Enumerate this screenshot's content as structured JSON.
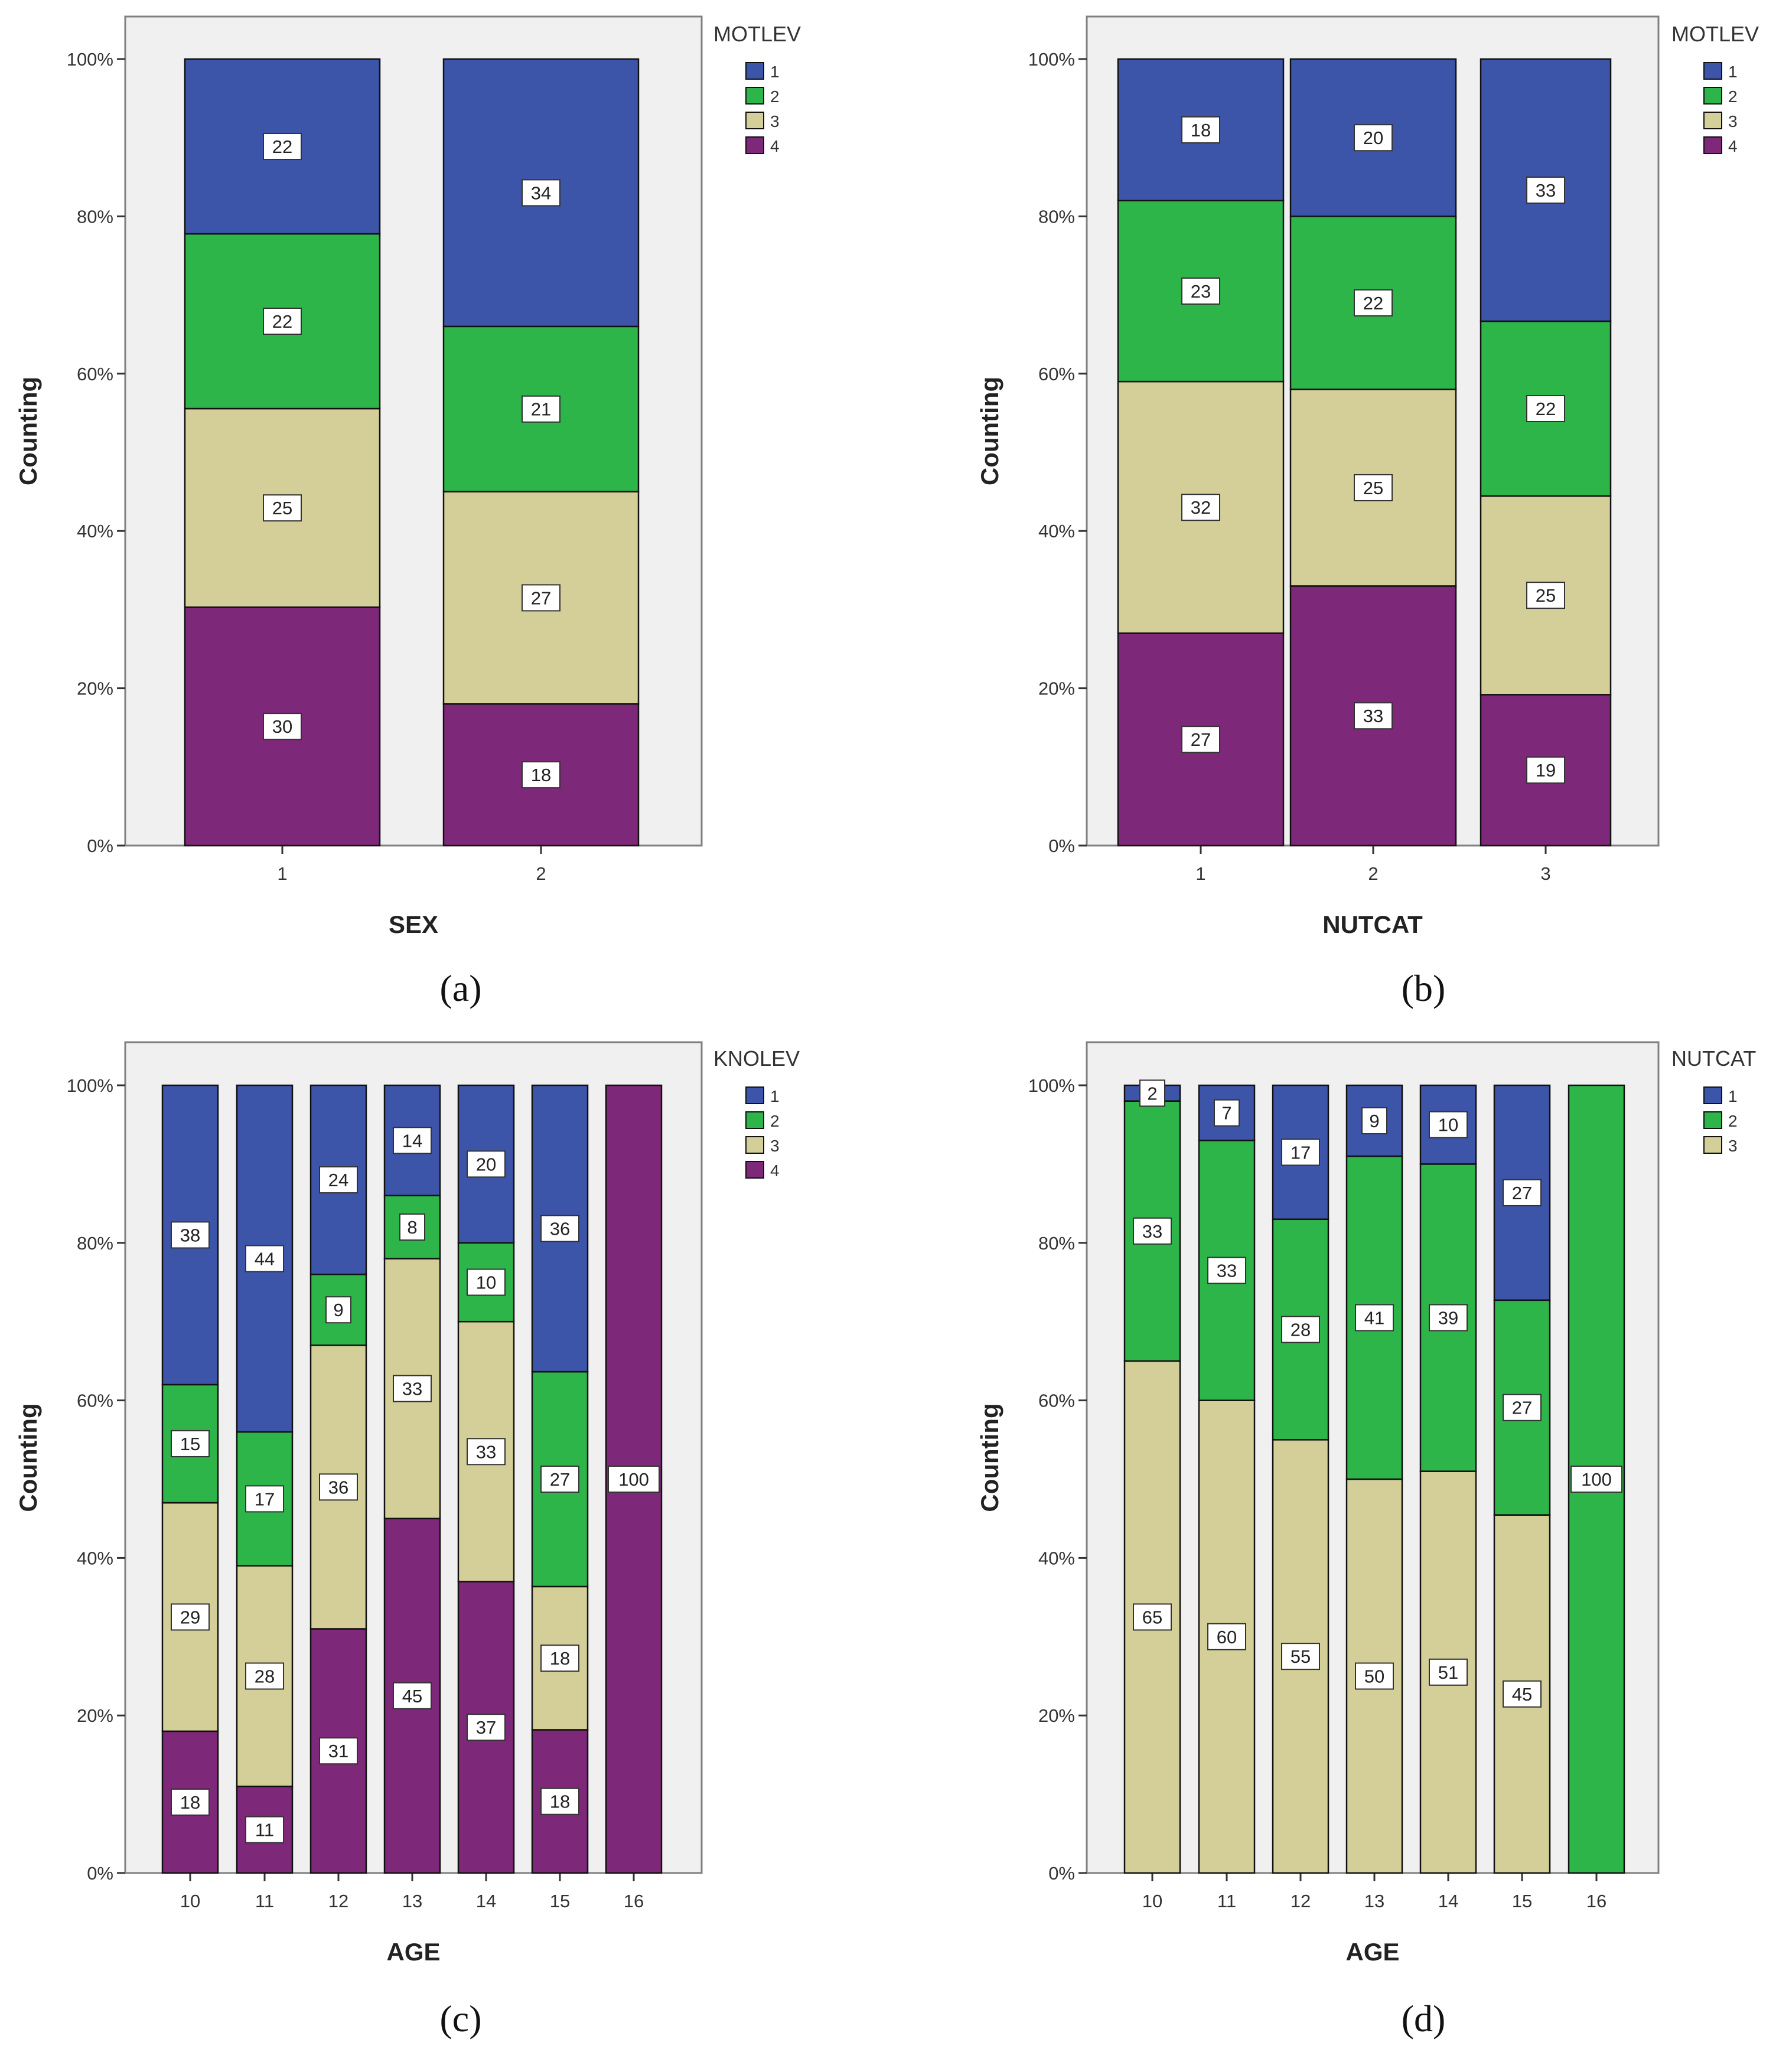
{
  "figure": {
    "colors": {
      "1": "#3d55a8",
      "2": "#2db54a",
      "3": "#d4cf98",
      "4": "#7d2878",
      "plot_bg": "#f0f0f0",
      "frame": "#808080"
    }
  },
  "chart_data": [
    {
      "id": "a",
      "panel_label": "(a)",
      "type": "bar",
      "stacked": true,
      "percent": true,
      "title": "",
      "xlabel": "SEX",
      "ylabel": "Counting",
      "ylim": [
        0,
        100
      ],
      "yticks": [
        "0%",
        "20%",
        "40%",
        "60%",
        "80%",
        "100%"
      ],
      "categories": [
        "1",
        "2"
      ],
      "legend_title": "MOTLEV",
      "series": [
        {
          "name": "4",
          "color_key": "4",
          "values": [
            30,
            18
          ]
        },
        {
          "name": "3",
          "color_key": "3",
          "values": [
            25,
            27
          ]
        },
        {
          "name": "2",
          "color_key": "2",
          "values": [
            22,
            21
          ]
        },
        {
          "name": "1",
          "color_key": "1",
          "values": [
            22,
            34
          ]
        }
      ],
      "legend_order": [
        "1",
        "2",
        "3",
        "4"
      ]
    },
    {
      "id": "b",
      "panel_label": "(b)",
      "type": "bar",
      "stacked": true,
      "percent": true,
      "title": "",
      "xlabel": "NUTCAT",
      "ylabel": "Counting",
      "ylim": [
        0,
        100
      ],
      "yticks": [
        "0%",
        "20%",
        "40%",
        "60%",
        "80%",
        "100%"
      ],
      "categories": [
        "1",
        "2",
        "3"
      ],
      "legend_title": "MOTLEV",
      "series": [
        {
          "name": "4",
          "color_key": "4",
          "values": [
            27,
            33,
            19
          ]
        },
        {
          "name": "3",
          "color_key": "3",
          "values": [
            32,
            25,
            25
          ]
        },
        {
          "name": "2",
          "color_key": "2",
          "values": [
            23,
            22,
            22
          ]
        },
        {
          "name": "1",
          "color_key": "1",
          "values": [
            18,
            20,
            33
          ]
        }
      ],
      "legend_order": [
        "1",
        "2",
        "3",
        "4"
      ]
    },
    {
      "id": "c",
      "panel_label": "(c)",
      "type": "bar",
      "stacked": true,
      "percent": true,
      "title": "",
      "xlabel": "AGE",
      "ylabel": "Counting",
      "ylim": [
        0,
        100
      ],
      "yticks": [
        "0%",
        "20%",
        "40%",
        "60%",
        "80%",
        "100%"
      ],
      "categories": [
        "10",
        "11",
        "12",
        "13",
        "14",
        "15",
        "16"
      ],
      "legend_title": "KNOLEV",
      "series": [
        {
          "name": "4",
          "color_key": "4",
          "values": [
            18,
            11,
            31,
            45,
            37,
            18,
            100
          ]
        },
        {
          "name": "3",
          "color_key": "3",
          "values": [
            29,
            28,
            36,
            33,
            33,
            18,
            0
          ]
        },
        {
          "name": "2",
          "color_key": "2",
          "values": [
            15,
            17,
            9,
            8,
            10,
            27,
            0
          ]
        },
        {
          "name": "1",
          "color_key": "1",
          "values": [
            38,
            44,
            24,
            14,
            20,
            36,
            0
          ]
        }
      ],
      "legend_order": [
        "1",
        "2",
        "3",
        "4"
      ]
    },
    {
      "id": "d",
      "panel_label": "(d)",
      "type": "bar",
      "stacked": true,
      "percent": true,
      "title": "",
      "xlabel": "AGE",
      "ylabel": "Counting",
      "ylim": [
        0,
        100
      ],
      "yticks": [
        "0%",
        "20%",
        "40%",
        "60%",
        "80%",
        "100%"
      ],
      "categories": [
        "10",
        "11",
        "12",
        "13",
        "14",
        "15",
        "16"
      ],
      "legend_title": "NUTCAT",
      "series": [
        {
          "name": "3",
          "color_key": "3",
          "values": [
            65,
            60,
            55,
            50,
            51,
            45,
            0
          ]
        },
        {
          "name": "2",
          "color_key": "2",
          "values": [
            33,
            33,
            28,
            41,
            39,
            27,
            100
          ]
        },
        {
          "name": "1",
          "color_key": "1",
          "values": [
            2,
            7,
            17,
            9,
            10,
            27,
            0
          ]
        }
      ],
      "legend_order": [
        "1",
        "2",
        "3"
      ]
    }
  ]
}
